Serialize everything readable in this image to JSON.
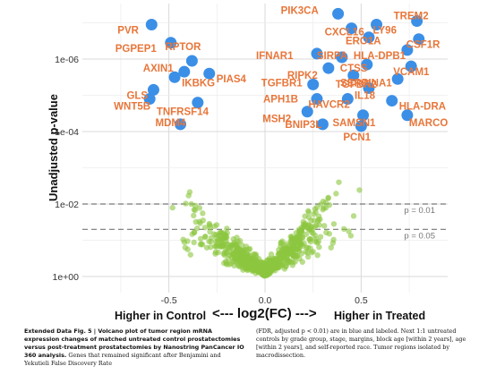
{
  "chart_data": {
    "type": "scatter",
    "title": "",
    "xlabel": "<--- log2(FC) --->",
    "xlabel_left": "Higher in Control",
    "xlabel_right": "Higher in Treated",
    "ylabel": "Unadjusted p-value",
    "y_scale": "log (reversed, -log10 p)",
    "xlim": [
      -0.95,
      0.95
    ],
    "x_ticks": [
      "-0.5",
      "0.0",
      "0.5"
    ],
    "y_ticks": [
      "1e+00",
      "1e-02",
      "1e-04",
      "1e-06"
    ],
    "grid": true,
    "thresholds": [
      {
        "label": "p = 0.01",
        "p": 0.01
      },
      {
        "label": "p = 0.05",
        "p": 0.05
      }
    ],
    "colors": {
      "significant": "#3b8fe6",
      "nonsignificant": "#8cc63f",
      "label": "#e8763a"
    },
    "labeled_genes": [
      {
        "name": "PVR",
        "log2fc": -0.59,
        "neglog10p": 6.95
      },
      {
        "name": "PGPEP1",
        "log2fc": -0.49,
        "neglog10p": 6.45
      },
      {
        "name": "RPTOR",
        "log2fc": -0.38,
        "neglog10p": 5.95
      },
      {
        "name": "AXIN1",
        "log2fc": -0.42,
        "neglog10p": 5.65
      },
      {
        "name": "PIAS4",
        "log2fc": -0.29,
        "neglog10p": 5.6
      },
      {
        "name": "IKBKG",
        "log2fc": -0.47,
        "neglog10p": 5.5
      },
      {
        "name": "GLS",
        "log2fc": -0.58,
        "neglog10p": 5.15
      },
      {
        "name": "TNFRSF14",
        "log2fc": -0.35,
        "neglog10p": 4.8
      },
      {
        "name": "WNT5B",
        "log2fc": -0.6,
        "neglog10p": 4.9
      },
      {
        "name": "MDM4",
        "log2fc": -0.44,
        "neglog10p": 4.2
      },
      {
        "name": "PIK3CA",
        "log2fc": 0.38,
        "neglog10p": 7.25
      },
      {
        "name": "CXCL16",
        "log2fc": 0.45,
        "neglog10p": 6.85
      },
      {
        "name": "LY96",
        "log2fc": 0.58,
        "neglog10p": 6.95
      },
      {
        "name": "TREM2",
        "log2fc": 0.79,
        "neglog10p": 7.05
      },
      {
        "name": "ERO1A",
        "log2fc": 0.54,
        "neglog10p": 6.6
      },
      {
        "name": "CSF1R",
        "log2fc": 0.8,
        "neglog10p": 6.55
      },
      {
        "name": "HLA-DPB1",
        "log2fc": 0.74,
        "neglog10p": 6.25
      },
      {
        "name": "IFNAR1",
        "log2fc": 0.27,
        "neglog10p": 6.15
      },
      {
        "name": "SIRPA",
        "log2fc": 0.4,
        "neglog10p": 6.05
      },
      {
        "name": "CTSS",
        "log2fc": 0.53,
        "neglog10p": 5.85
      },
      {
        "name": "VCAM1",
        "log2fc": 0.76,
        "neglog10p": 5.8
      },
      {
        "name": "RIPK2",
        "log2fc": 0.33,
        "neglog10p": 5.75
      },
      {
        "name": "TGFBR2",
        "log2fc": 0.46,
        "neglog10p": 5.55
      },
      {
        "name": "SERPINA1",
        "log2fc": 0.69,
        "neglog10p": 5.45
      },
      {
        "name": "TGFBR1",
        "log2fc": 0.25,
        "neglog10p": 5.3
      },
      {
        "name": "IL18",
        "log2fc": 0.54,
        "neglog10p": 5.2
      },
      {
        "name": "APH1B",
        "log2fc": 0.27,
        "neglog10p": 4.9
      },
      {
        "name": "HAVCR2",
        "log2fc": 0.43,
        "neglog10p": 4.9
      },
      {
        "name": "HLA-DRA",
        "log2fc": 0.66,
        "neglog10p": 4.85
      },
      {
        "name": "MSH2",
        "log2fc": 0.22,
        "neglog10p": 4.55
      },
      {
        "name": "SAMSN1",
        "log2fc": 0.51,
        "neglog10p": 4.45
      },
      {
        "name": "MARCO",
        "log2fc": 0.74,
        "neglog10p": 4.45
      },
      {
        "name": "BNIP3L",
        "log2fc": 0.3,
        "neglog10p": 4.2
      },
      {
        "name": "PCN1",
        "log2fc": 0.5,
        "neglog10p": 4.15
      }
    ]
  },
  "caption": {
    "left_bold": "Extended Data Fig. 5 | Volcano plot of tumor region mRNA expression changes of matched untreated control prostatectomies versus post-treatment prostatectomies by Nanostring PanCancer IO 360 analysis.",
    "left_plain": " Genes that remained significant after Benjamini and Yekutieli False Discovery Rate",
    "right": "(FDR, adjusted p < 0.01) are in blue and labeled. Next 1:1 untreated controls by grade group, stage, margins, block age [within 2 years], age [within 2 years], and self-reported race. Tumor regions isolated by macrodissection."
  }
}
